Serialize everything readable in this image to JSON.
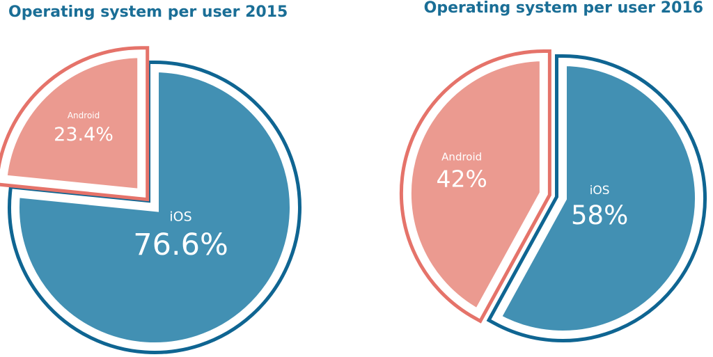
{
  "chart_data": [
    {
      "type": "pie",
      "title": "Operating system per user 2015",
      "categories": [
        "iOS",
        "Android"
      ],
      "values": [
        76.6,
        23.4
      ],
      "value_labels": [
        "76.6%",
        "23.4%"
      ],
      "colors": [
        "#4290b3",
        "#eb9a90"
      ],
      "edge_colors": [
        "#0f6592",
        "#e5736a"
      ]
    },
    {
      "type": "pie",
      "title": "Operating system per user 2016",
      "categories": [
        "iOS",
        "Android"
      ],
      "values": [
        58,
        42
      ],
      "value_labels": [
        "58%",
        "42%"
      ],
      "colors": [
        "#4290b3",
        "#eb9a90"
      ],
      "edge_colors": [
        "#0f6592",
        "#e5736a"
      ]
    }
  ]
}
